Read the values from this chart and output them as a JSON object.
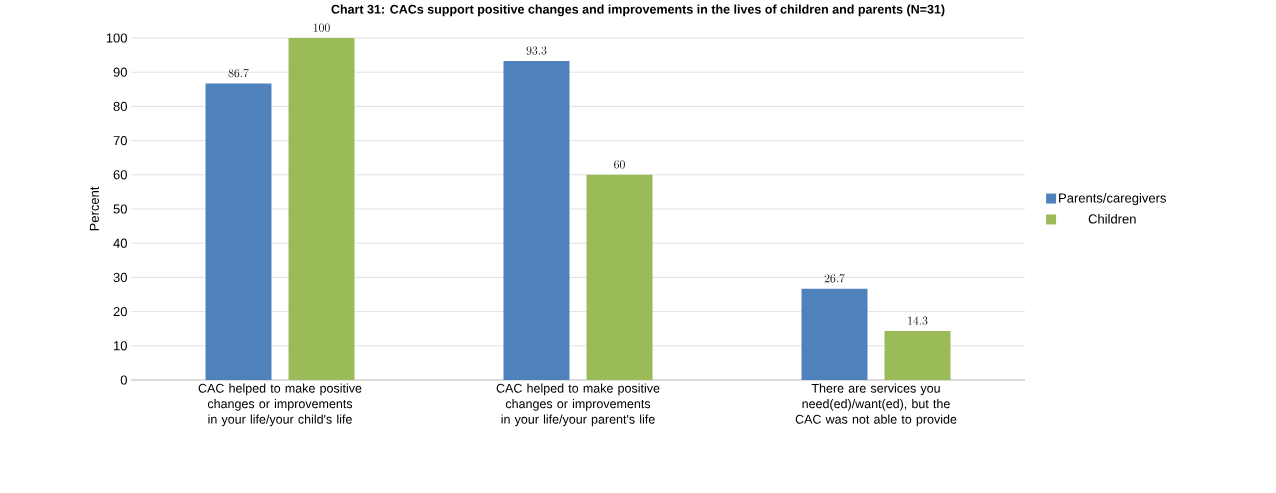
{
  "chart_data": {
    "type": "bar",
    "title": "Chart 31: CACs support positive changes and improvements in the lives of children and parents (N=31)",
    "ylabel": "Percent",
    "categories": [
      "CAC helped to make positive changes or improvements in your life/your child's life",
      "CAC helped to make positive changes or improvements in your life/your parent's life",
      "There are services you need(ed)/want(ed), but the CAC was not able to provide"
    ],
    "series": [
      {
        "name": "Parents/caregivers",
        "color": "#4f81bd",
        "values": [
          86.7,
          93.3,
          26.7
        ]
      },
      {
        "name": "Children",
        "color": "#9bbb59",
        "values": [
          100,
          60,
          14.3
        ]
      }
    ],
    "ylim": [
      0,
      100
    ],
    "yticks": [
      0,
      10,
      20,
      30,
      40,
      50,
      60,
      70,
      80,
      90,
      100
    ],
    "grid": "y",
    "legend": "right",
    "data_labels": true
  }
}
